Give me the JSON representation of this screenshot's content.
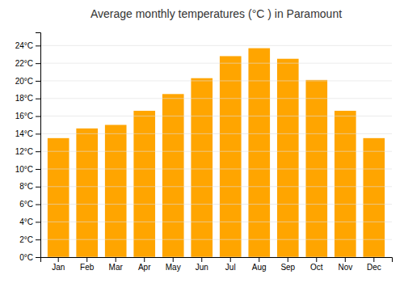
{
  "chart_data": {
    "type": "bar",
    "title": "Average monthly temperatures (°C ) in Paramount",
    "categories": [
      "Jan",
      "Feb",
      "Mar",
      "Apr",
      "May",
      "Jun",
      "Jul",
      "Aug",
      "Sep",
      "Oct",
      "Nov",
      "Dec"
    ],
    "values": [
      13.5,
      14.6,
      15.0,
      16.6,
      18.5,
      20.3,
      22.8,
      23.7,
      22.5,
      20.1,
      16.6,
      13.5
    ],
    "color": "#FFA500",
    "ylim": [
      0,
      25.5
    ],
    "yticks": [
      {
        "value": 0,
        "label": "0°C"
      },
      {
        "value": 2,
        "label": "2°C"
      },
      {
        "value": 4,
        "label": "4°C"
      },
      {
        "value": 6,
        "label": "6°C"
      },
      {
        "value": 8,
        "label": "8°C"
      },
      {
        "value": 10,
        "label": "10°C"
      },
      {
        "value": 12,
        "label": "12°C"
      },
      {
        "value": 14,
        "label": "14°C"
      },
      {
        "value": 16,
        "label": "16°C"
      },
      {
        "value": 18,
        "label": "18°C"
      },
      {
        "value": 20,
        "label": "20°C"
      },
      {
        "value": 22,
        "label": "22°C"
      },
      {
        "value": 24,
        "label": "24°C"
      }
    ],
    "grid": true
  }
}
